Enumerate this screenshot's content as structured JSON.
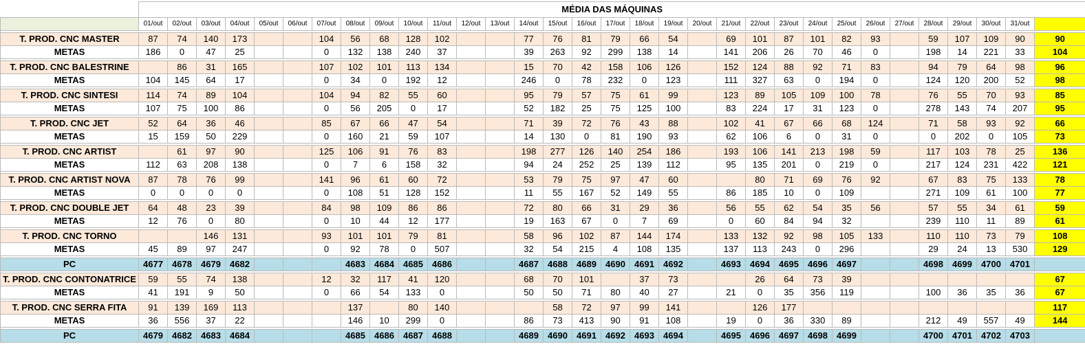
{
  "title": "MÉDIA DAS MÁQUINAS",
  "dates": [
    "01/out",
    "02/out",
    "03/out",
    "04/out",
    "05/out",
    "06/out",
    "07/out",
    "08/out",
    "09/out",
    "10/out",
    "11/out",
    "12/out",
    "13/out",
    "14/out",
    "15/out",
    "16/out",
    "17/out",
    "18/out",
    "19/out",
    "20/out",
    "21/out",
    "22/out",
    "23/out",
    "24/out",
    "25/out",
    "26/out",
    "27/out",
    "28/out",
    "29/out",
    "30/out",
    "31/out"
  ],
  "group1": [
    {
      "prod": {
        "label": "T. PROD. CNC MASTER",
        "values": [
          "87",
          "74",
          "140",
          "173",
          "",
          "",
          "104",
          "56",
          "68",
          "128",
          "102",
          "",
          "",
          "77",
          "76",
          "81",
          "79",
          "66",
          "54",
          "",
          "69",
          "101",
          "87",
          "101",
          "82",
          "93",
          "",
          "59",
          "107",
          "109",
          "90"
        ],
        "avg": "90"
      },
      "meta": {
        "label": "METAS",
        "values": [
          "186",
          "0",
          "47",
          "25",
          "",
          "",
          "0",
          "132",
          "138",
          "240",
          "37",
          "",
          "",
          "39",
          "263",
          "92",
          "299",
          "138",
          "14",
          "",
          "141",
          "206",
          "26",
          "70",
          "46",
          "0",
          "",
          "198",
          "14",
          "221",
          "33"
        ],
        "avg": "104"
      }
    },
    {
      "prod": {
        "label": "T. PROD. CNC BALESTRINE",
        "values": [
          "",
          "86",
          "31",
          "165",
          "",
          "",
          "107",
          "102",
          "101",
          "113",
          "134",
          "",
          "",
          "15",
          "70",
          "42",
          "158",
          "106",
          "126",
          "",
          "152",
          "124",
          "88",
          "92",
          "71",
          "83",
          "",
          "94",
          "79",
          "64",
          "98"
        ],
        "avg": "96"
      },
      "meta": {
        "label": "METAS",
        "values": [
          "104",
          "145",
          "64",
          "17",
          "",
          "",
          "0",
          "34",
          "0",
          "192",
          "12",
          "",
          "",
          "246",
          "0",
          "78",
          "232",
          "0",
          "123",
          "",
          "111",
          "327",
          "63",
          "0",
          "194",
          "0",
          "",
          "124",
          "120",
          "200",
          "52"
        ],
        "avg": "98"
      }
    },
    {
      "prod": {
        "label": "T. PROD. CNC SINTESI",
        "values": [
          "114",
          "74",
          "89",
          "104",
          "",
          "",
          "104",
          "94",
          "82",
          "55",
          "60",
          "",
          "",
          "95",
          "79",
          "57",
          "75",
          "61",
          "99",
          "",
          "123",
          "89",
          "105",
          "109",
          "100",
          "78",
          "",
          "76",
          "55",
          "70",
          "93"
        ],
        "avg": "85"
      },
      "meta": {
        "label": "METAS",
        "values": [
          "107",
          "75",
          "100",
          "86",
          "",
          "",
          "0",
          "56",
          "205",
          "0",
          "17",
          "",
          "",
          "52",
          "182",
          "25",
          "75",
          "125",
          "100",
          "",
          "83",
          "224",
          "17",
          "31",
          "123",
          "0",
          "",
          "278",
          "143",
          "74",
          "207"
        ],
        "avg": "95"
      }
    },
    {
      "prod": {
        "label": "T. PROD. CNC JET",
        "values": [
          "52",
          "64",
          "36",
          "46",
          "",
          "",
          "85",
          "67",
          "66",
          "47",
          "54",
          "",
          "",
          "71",
          "39",
          "72",
          "76",
          "43",
          "88",
          "",
          "102",
          "41",
          "67",
          "66",
          "68",
          "124",
          "",
          "71",
          "58",
          "93",
          "92"
        ],
        "avg": "66"
      },
      "meta": {
        "label": "METAS",
        "values": [
          "15",
          "159",
          "50",
          "229",
          "",
          "",
          "0",
          "160",
          "21",
          "59",
          "107",
          "",
          "",
          "14",
          "130",
          "0",
          "81",
          "190",
          "93",
          "",
          "62",
          "106",
          "6",
          "0",
          "31",
          "0",
          "",
          "0",
          "202",
          "0",
          "105"
        ],
        "avg": "73"
      }
    },
    {
      "prod": {
        "label": "T. PROD. CNC ARTIST",
        "values": [
          "",
          "61",
          "97",
          "90",
          "",
          "",
          "125",
          "106",
          "91",
          "76",
          "83",
          "",
          "",
          "198",
          "277",
          "126",
          "140",
          "254",
          "186",
          "",
          "193",
          "106",
          "141",
          "213",
          "198",
          "59",
          "",
          "117",
          "103",
          "78",
          "25"
        ],
        "avg": "136"
      },
      "meta": {
        "label": "METAS",
        "values": [
          "112",
          "63",
          "208",
          "138",
          "",
          "",
          "0",
          "7",
          "6",
          "158",
          "32",
          "",
          "",
          "94",
          "24",
          "252",
          "25",
          "139",
          "112",
          "",
          "95",
          "135",
          "201",
          "0",
          "219",
          "0",
          "",
          "217",
          "124",
          "231",
          "422"
        ],
        "avg": "121"
      }
    },
    {
      "prod": {
        "label": "T. PROD. CNC ARTIST NOVA",
        "values": [
          "87",
          "78",
          "76",
          "99",
          "",
          "",
          "141",
          "96",
          "61",
          "60",
          "72",
          "",
          "",
          "53",
          "79",
          "75",
          "97",
          "47",
          "60",
          "",
          "",
          "80",
          "71",
          "69",
          "76",
          "92",
          "",
          "67",
          "83",
          "75",
          "133"
        ],
        "avg": "78"
      },
      "meta": {
        "label": "METAS",
        "values": [
          "0",
          "0",
          "0",
          "0",
          "",
          "",
          "0",
          "108",
          "51",
          "128",
          "152",
          "",
          "",
          "11",
          "55",
          "167",
          "52",
          "149",
          "55",
          "",
          "86",
          "185",
          "10",
          "0",
          "109",
          "",
          "",
          "271",
          "109",
          "61",
          "100"
        ],
        "avg": "77"
      }
    },
    {
      "prod": {
        "label": "T. PROD. CNC DOUBLE JET",
        "values": [
          "64",
          "48",
          "23",
          "39",
          "",
          "",
          "84",
          "98",
          "109",
          "86",
          "86",
          "",
          "",
          "72",
          "80",
          "66",
          "31",
          "29",
          "36",
          "",
          "56",
          "55",
          "62",
          "54",
          "35",
          "56",
          "",
          "57",
          "55",
          "34",
          "61"
        ],
        "avg": "59"
      },
      "meta": {
        "label": "METAS",
        "values": [
          "12",
          "76",
          "0",
          "80",
          "",
          "",
          "0",
          "10",
          "44",
          "12",
          "177",
          "",
          "",
          "19",
          "163",
          "67",
          "0",
          "7",
          "69",
          "",
          "0",
          "60",
          "84",
          "94",
          "32",
          "",
          "",
          "239",
          "110",
          "11",
          "89"
        ],
        "avg": "61"
      }
    },
    {
      "prod": {
        "label": "T. PROD. CNC TORNO",
        "values": [
          "",
          "",
          "146",
          "131",
          "",
          "",
          "93",
          "101",
          "101",
          "79",
          "81",
          "",
          "",
          "58",
          "96",
          "102",
          "87",
          "144",
          "174",
          "",
          "133",
          "132",
          "92",
          "98",
          "105",
          "133",
          "",
          "110",
          "110",
          "73",
          "79"
        ],
        "avg": "108"
      },
      "meta": {
        "label": "METAS",
        "values": [
          "45",
          "89",
          "97",
          "247",
          "",
          "",
          "0",
          "92",
          "78",
          "0",
          "507",
          "",
          "",
          "32",
          "54",
          "215",
          "4",
          "108",
          "135",
          "",
          "137",
          "113",
          "243",
          "0",
          "296",
          "",
          "",
          "29",
          "24",
          "13",
          "530"
        ],
        "avg": "129"
      }
    }
  ],
  "pc1": {
    "label": "PC",
    "values": [
      "4677",
      "4678",
      "4679",
      "4682",
      "",
      "",
      "",
      "4683",
      "4684",
      "4685",
      "4686",
      "",
      "",
      "4687",
      "4688",
      "4689",
      "4690",
      "4691",
      "4692",
      "",
      "4693",
      "4694",
      "4695",
      "4696",
      "4697",
      "",
      "",
      "4698",
      "4699",
      "4700",
      "4701"
    ],
    "avg": ""
  },
  "group2": [
    {
      "prod": {
        "label": "T. PROD. CNC CONTONATRICE",
        "values": [
          "59",
          "55",
          "74",
          "138",
          "",
          "",
          "12",
          "32",
          "117",
          "41",
          "120",
          "",
          "",
          "68",
          "70",
          "101",
          "",
          "37",
          "73",
          "",
          "",
          "26",
          "64",
          "73",
          "39",
          "",
          "",
          "",
          "",
          "",
          ""
        ],
        "avg": "67"
      },
      "meta": {
        "label": "METAS",
        "values": [
          "41",
          "191",
          "9",
          "50",
          "",
          "",
          "0",
          "66",
          "54",
          "133",
          "0",
          "",
          "",
          "50",
          "50",
          "71",
          "80",
          "40",
          "27",
          "",
          "21",
          "0",
          "35",
          "356",
          "119",
          "",
          "",
          "100",
          "36",
          "35",
          "36"
        ],
        "avg": "67"
      }
    },
    {
      "prod": {
        "label": "T. PROD. CNC SERRA FITA",
        "values": [
          "91",
          "139",
          "169",
          "113",
          "",
          "",
          "",
          "137",
          "",
          "80",
          "140",
          "",
          "",
          "",
          "58",
          "72",
          "97",
          "99",
          "141",
          "",
          "",
          "126",
          "177",
          "",
          "",
          "",
          "",
          "",
          "",
          "",
          ""
        ],
        "avg": "117"
      },
      "meta": {
        "label": "METAS",
        "values": [
          "36",
          "556",
          "37",
          "22",
          "",
          "",
          "",
          "146",
          "10",
          "299",
          "0",
          "",
          "",
          "86",
          "73",
          "413",
          "90",
          "91",
          "108",
          "",
          "19",
          "0",
          "36",
          "330",
          "89",
          "",
          "",
          "212",
          "49",
          "557",
          "49"
        ],
        "avg": "144"
      }
    }
  ],
  "pc2": {
    "label": "PC",
    "values": [
      "4679",
      "4682",
      "4683",
      "4684",
      "",
      "",
      "",
      "4685",
      "4686",
      "4687",
      "4688",
      "",
      "",
      "4689",
      "4690",
      "4691",
      "4692",
      "4693",
      "4694",
      "",
      "4695",
      "4696",
      "4697",
      "4698",
      "4699",
      "",
      "",
      "4700",
      "4701",
      "4702",
      "4703"
    ],
    "avg": ""
  }
}
